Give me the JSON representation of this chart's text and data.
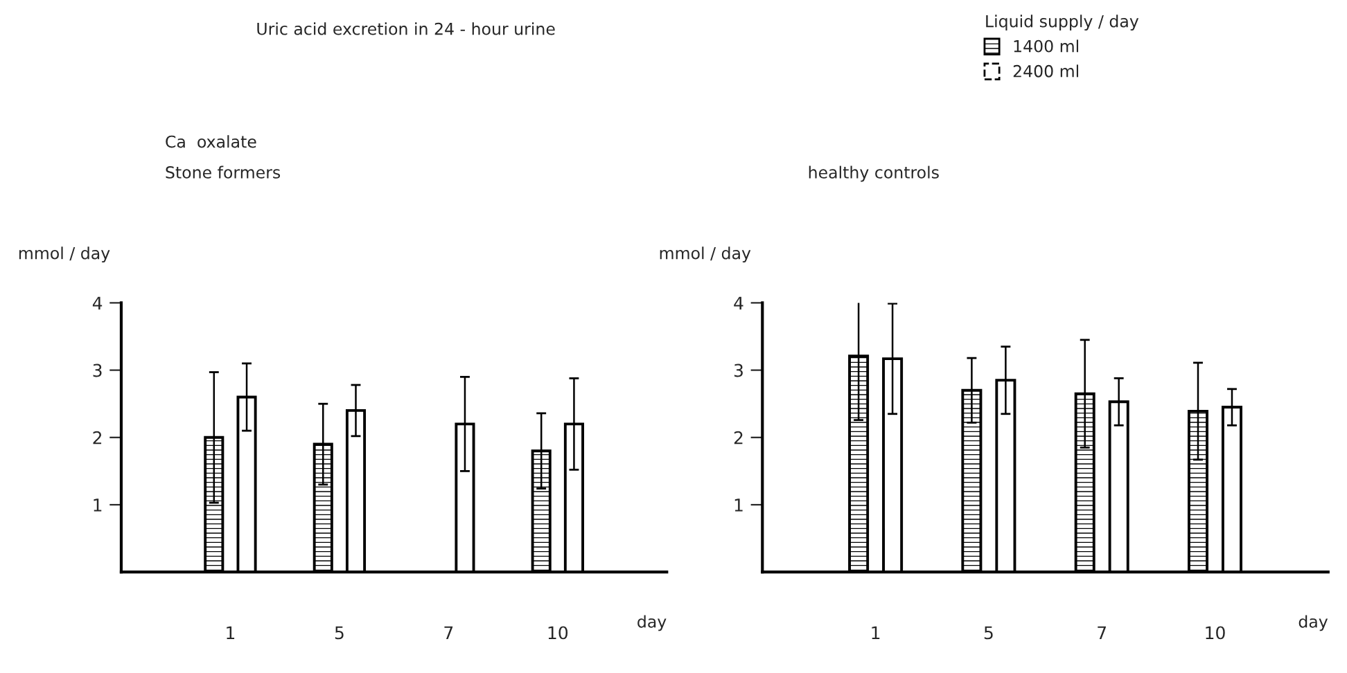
{
  "chart_data": [
    {
      "type": "bar",
      "title": "Uric acid excretion in 24 - hour urine",
      "subtitle": "Ca  oxalate\nStone formers",
      "ylabel": "mmol / day",
      "xlabel": "day",
      "categories": [
        "1",
        "5",
        "7",
        "10"
      ],
      "ylim": [
        0,
        4
      ],
      "yticks": [
        1,
        2,
        3,
        4
      ],
      "grid": false,
      "legend": false,
      "series": [
        {
          "color": "#000000",
          "values": [
            2.0,
            1.9,
            null,
            1.8
          ],
          "errors": [
            0.97,
            0.6,
            null,
            0.56
          ]
        },
        {
          "color": "#ffffff",
          "values": [
            2.6,
            2.4,
            2.2,
            2.2
          ],
          "errors": [
            0.5,
            0.38,
            0.7,
            0.68
          ]
        }
      ]
    },
    {
      "type": "bar",
      "subtitle": "healthy controls",
      "ylabel": "mmol / day",
      "xlabel": "day",
      "legend_title": "Liquid supply / day",
      "categories": [
        "1",
        "5",
        "7",
        "10"
      ],
      "ylim": [
        0,
        4
      ],
      "yticks": [
        1,
        2,
        3,
        4
      ],
      "grid": false,
      "legend": "top right",
      "series": [
        {
          "name": "1400 ml",
          "color": "#000000",
          "values": [
            3.21,
            2.7,
            2.65,
            2.39
          ],
          "errors": [
            0.95,
            0.48,
            0.8,
            0.72
          ]
        },
        {
          "name": "2400 ml",
          "color": "#ffffff",
          "values": [
            3.17,
            2.85,
            2.53,
            2.45
          ],
          "errors": [
            0.82,
            0.5,
            0.35,
            0.27
          ]
        }
      ]
    }
  ]
}
